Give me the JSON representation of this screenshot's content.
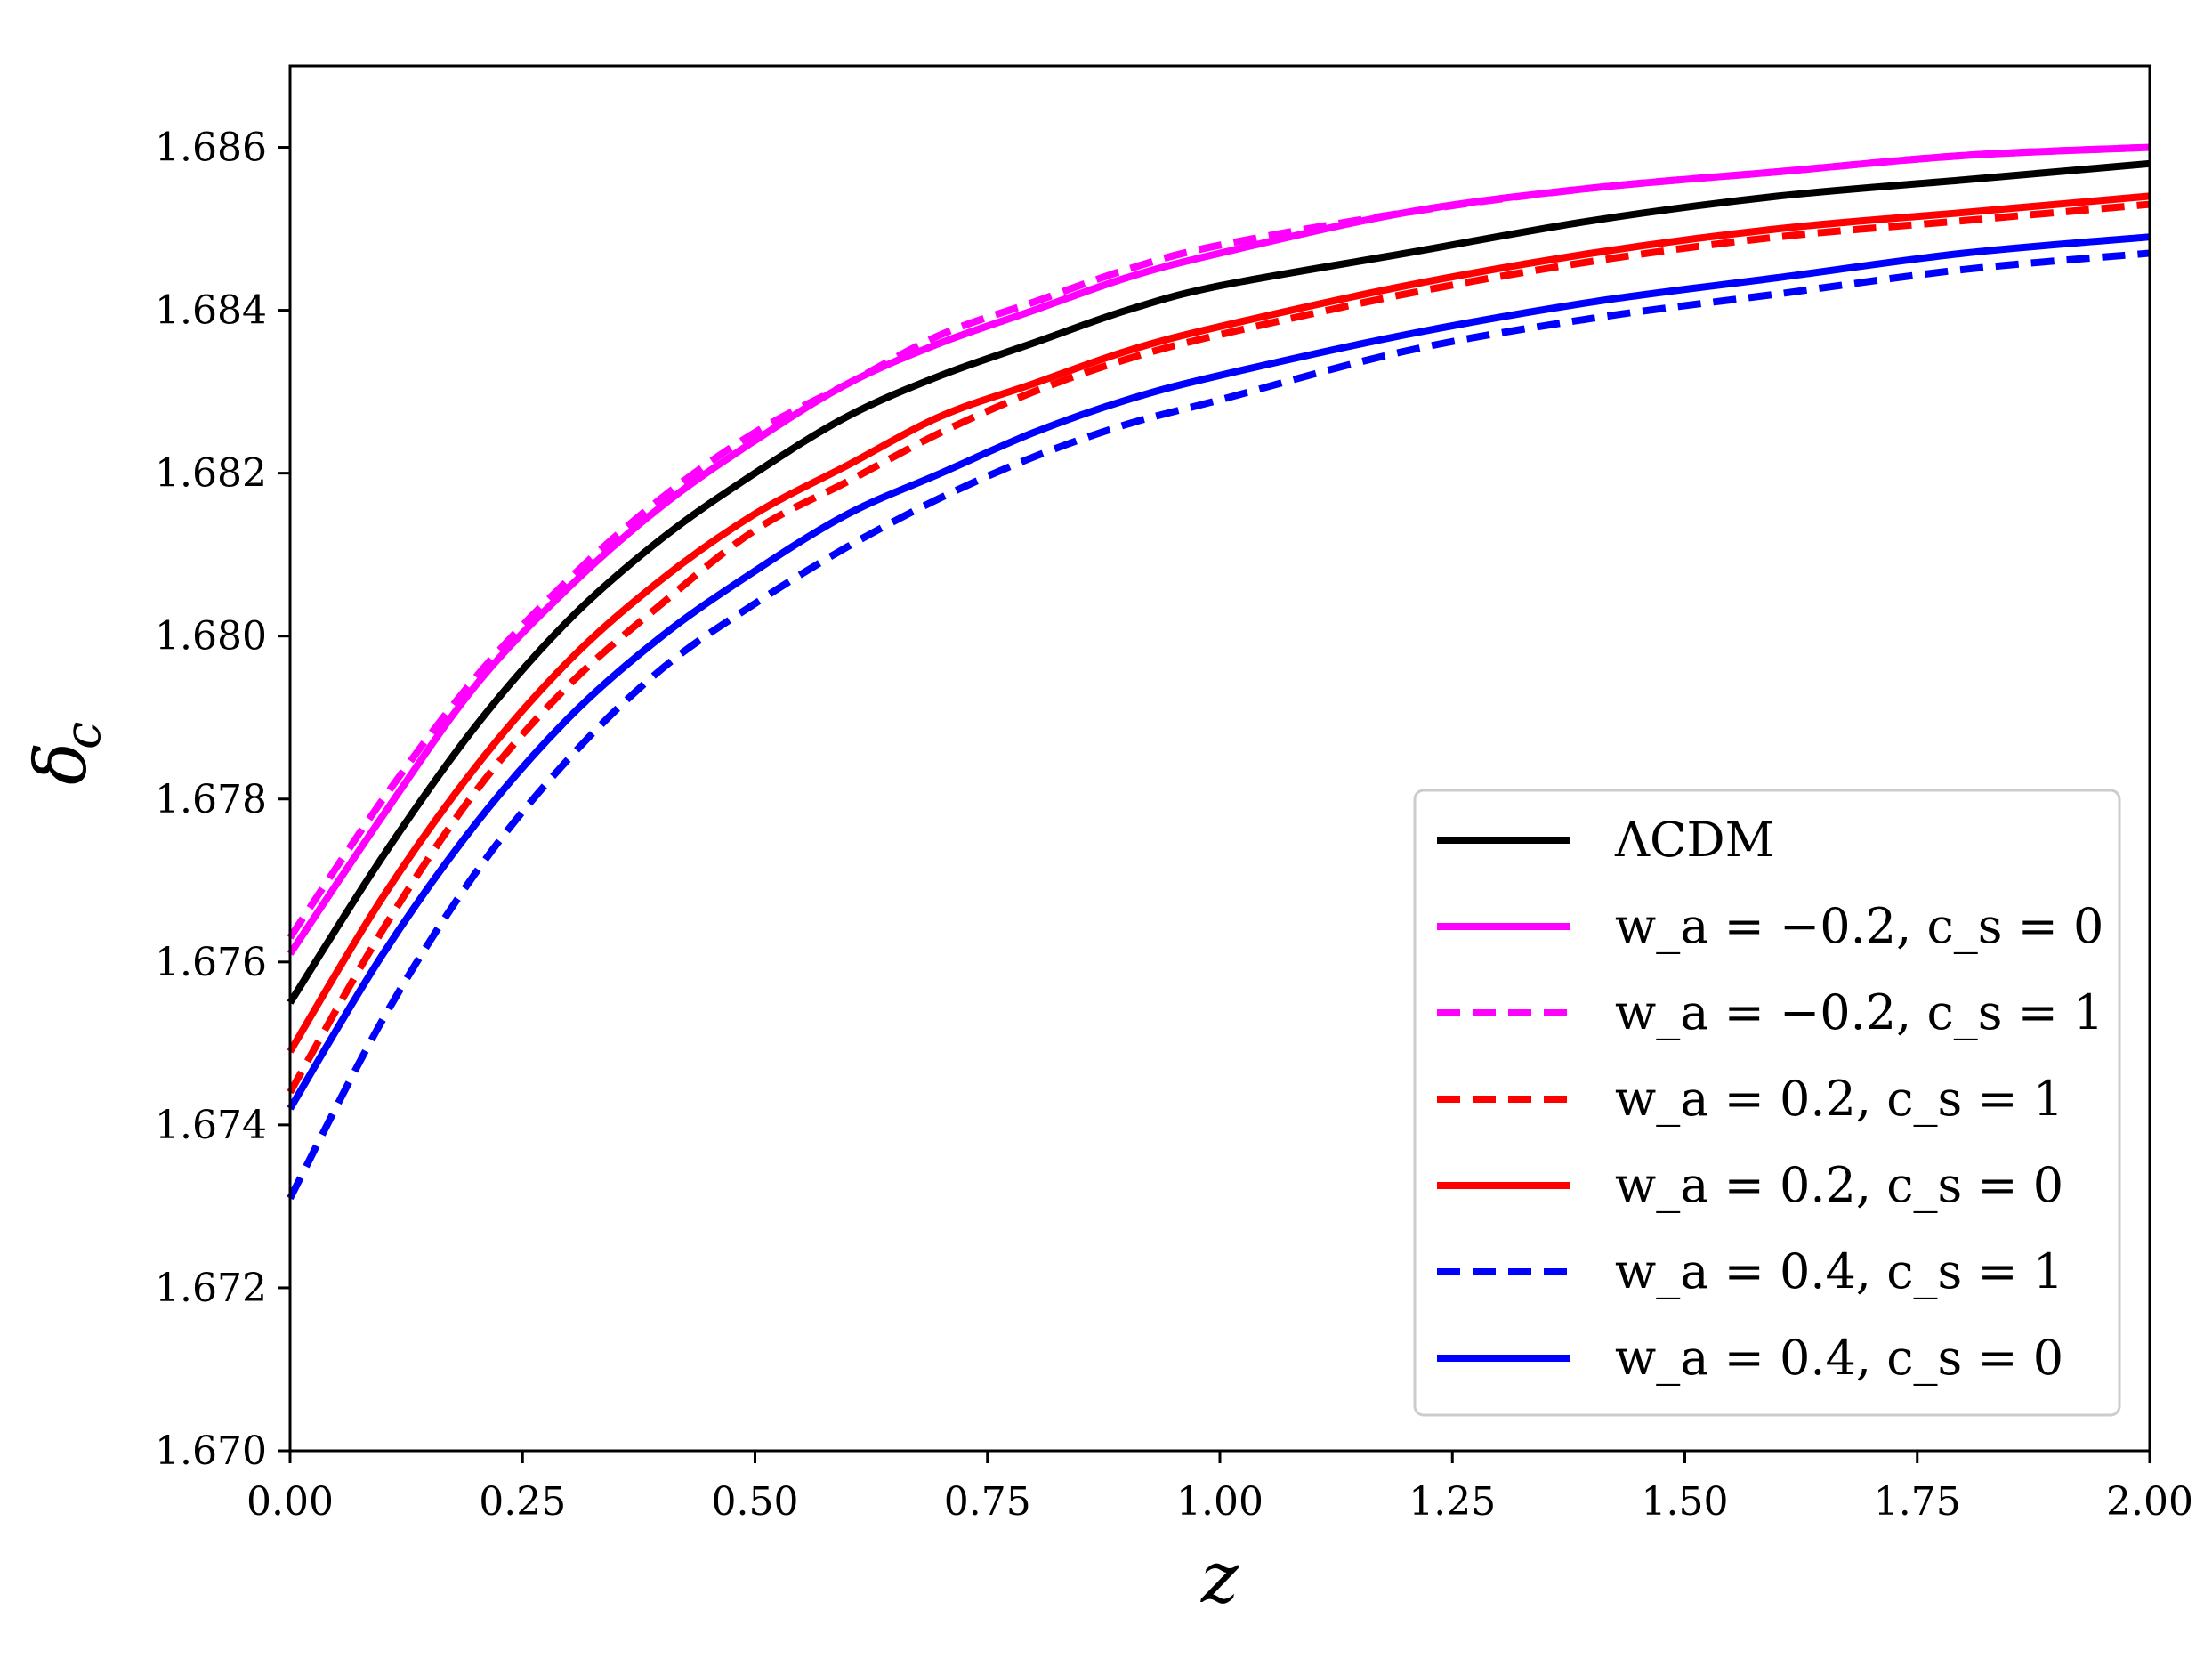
{
  "chart_data": {
    "type": "line",
    "title": "",
    "xlabel": "z",
    "ylabel": "δc",
    "xlim": [
      0.0,
      2.0
    ],
    "ylim": [
      1.67,
      1.687
    ],
    "x_ticks": [
      "0.00",
      "0.25",
      "0.50",
      "0.75",
      "1.00",
      "1.25",
      "1.50",
      "1.75",
      "2.00"
    ],
    "y_ticks": [
      "1.670",
      "1.672",
      "1.674",
      "1.676",
      "1.678",
      "1.680",
      "1.682",
      "1.684",
      "1.686"
    ],
    "grid": false,
    "legend_position": "bottom-right",
    "x": [
      0.0,
      0.1,
      0.2,
      0.3,
      0.4,
      0.5,
      0.6,
      0.7,
      0.8,
      0.9,
      1.0,
      1.2,
      1.4,
      1.6,
      1.8,
      2.0
    ],
    "series": [
      {
        "name": "ΛCDM",
        "color": "#000000",
        "dash": "solid",
        "values": [
          1.6755,
          1.6773,
          1.6789,
          1.6802,
          1.6812,
          1.682,
          1.6827,
          1.6832,
          1.6836,
          1.684,
          1.6843,
          1.6847,
          1.6851,
          1.6854,
          1.6856,
          1.6858
        ]
      },
      {
        "name": "w_a = −0.2, c_s = 0",
        "color": "#ff00ff",
        "dash": "solid",
        "values": [
          1.6761,
          1.6778,
          1.6794,
          1.6806,
          1.6816,
          1.6824,
          1.6831,
          1.6836,
          1.684,
          1.6844,
          1.6847,
          1.6852,
          1.6855,
          1.6857,
          1.6859,
          1.686
        ]
      },
      {
        "name": "w_a = −0.2, c_s = 1",
        "color": "#ff00ff",
        "dash": "dashed",
        "values": [
          1.6763,
          1.678,
          1.6795,
          1.6807,
          1.6817,
          1.6825,
          1.6831,
          1.6837,
          1.6841,
          1.6845,
          1.6848,
          1.6852,
          1.6855,
          1.6857,
          1.6859,
          1.686
        ]
      },
      {
        "name": "w_a = 0.2, c_s = 1",
        "color": "#ff0000",
        "dash": "dashed",
        "values": [
          1.6744,
          1.6764,
          1.6781,
          1.6794,
          1.6804,
          1.6813,
          1.6819,
          1.6825,
          1.683,
          1.6834,
          1.6837,
          1.6842,
          1.6846,
          1.6849,
          1.6851,
          1.6853
        ]
      },
      {
        "name": "w_a = 0.2, c_s = 0",
        "color": "#ff0000",
        "dash": "solid",
        "values": [
          1.6749,
          1.6768,
          1.6784,
          1.6797,
          1.6807,
          1.6815,
          1.6821,
          1.6827,
          1.6831,
          1.6835,
          1.6838,
          1.6843,
          1.6847,
          1.685,
          1.6852,
          1.6854
        ]
      },
      {
        "name": "w_a = 0.4, c_s = 1",
        "color": "#0000ff",
        "dash": "dashed",
        "values": [
          1.6731,
          1.6753,
          1.6771,
          1.6785,
          1.6796,
          1.6804,
          1.6811,
          1.6817,
          1.6822,
          1.6826,
          1.6829,
          1.6835,
          1.6839,
          1.6842,
          1.6845,
          1.6847
        ]
      },
      {
        "name": "w_a = 0.4, c_s = 0",
        "color": "#0000ff",
        "dash": "solid",
        "values": [
          1.6742,
          1.6761,
          1.6777,
          1.679,
          1.68,
          1.6808,
          1.6815,
          1.682,
          1.6825,
          1.6829,
          1.6832,
          1.6837,
          1.6841,
          1.6844,
          1.6847,
          1.6849
        ]
      }
    ]
  }
}
